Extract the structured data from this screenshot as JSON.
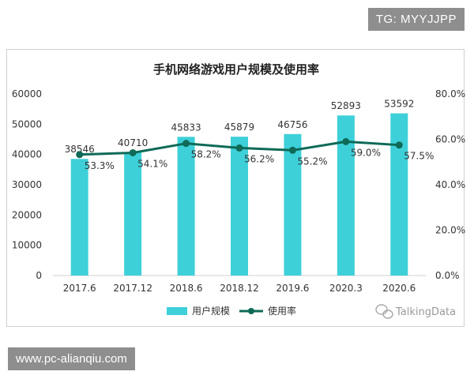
{
  "badge_top": "TG: MYYJJPP",
  "badge_bottom": "www.pc-alianqiu.com",
  "watermark": "TalkingData",
  "colors": {
    "bar": "#3ed0d9",
    "line": "#0e6a57"
  },
  "chart_data": {
    "type": "bar",
    "title": "手机网络游戏用户规模及使用率",
    "categories": [
      "2017.6",
      "2017.12",
      "2018.6",
      "2018.12",
      "2019.6",
      "2020.3",
      "2020.6"
    ],
    "series": [
      {
        "name": "用户规模",
        "type": "bar",
        "axis": "left",
        "values": [
          38546,
          40710,
          45833,
          45879,
          46756,
          52893,
          53592
        ]
      },
      {
        "name": "使用率",
        "type": "line",
        "axis": "right",
        "values": [
          53.3,
          54.1,
          58.2,
          56.2,
          55.2,
          59.0,
          57.5
        ],
        "labels": [
          "53.3%",
          "54.1%",
          "58.2%",
          "56.2%",
          "55.2%",
          "59.0%",
          "57.5%"
        ]
      }
    ],
    "ylim": [
      0,
      60000
    ],
    "yticks": [
      "0",
      "10000",
      "20000",
      "30000",
      "40000",
      "50000",
      "60000"
    ],
    "y2lim": [
      0,
      80
    ],
    "y2ticks": [
      "0.0%",
      "20.0%",
      "40.0%",
      "60.0%",
      "80.0%"
    ],
    "grid": false,
    "legend": "bottom"
  }
}
